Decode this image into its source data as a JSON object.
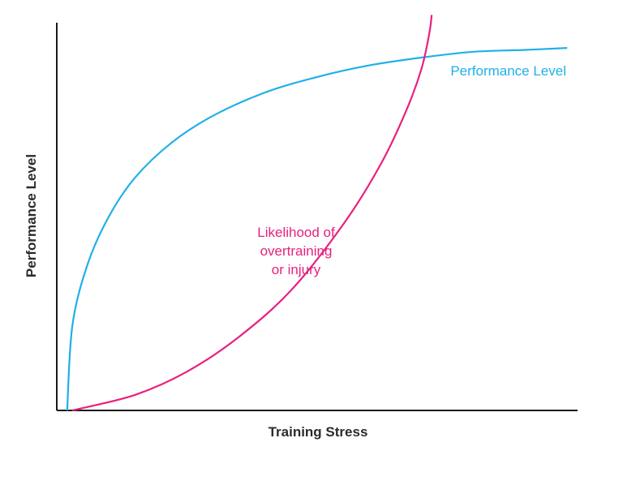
{
  "chart_data": {
    "type": "line",
    "title": "",
    "xlabel": "Training Stress",
    "ylabel": "Performance Level",
    "xlim": [
      0,
      1
    ],
    "ylim": [
      0,
      1
    ],
    "grid": false,
    "legend": "none",
    "series": [
      {
        "name": "Performance Level",
        "color": "#1fb0e8",
        "x": [
          0.02,
          0.03,
          0.06,
          0.1,
          0.15,
          0.22,
          0.3,
          0.4,
          0.5,
          0.6,
          0.7,
          0.8,
          0.9,
          0.98
        ],
        "y": [
          0.0,
          0.22,
          0.38,
          0.5,
          0.6,
          0.69,
          0.76,
          0.82,
          0.86,
          0.89,
          0.91,
          0.925,
          0.93,
          0.935
        ]
      },
      {
        "name": "Likelihood of overtraining or injury",
        "color": "#e8207f",
        "x": [
          0.03,
          0.15,
          0.25,
          0.35,
          0.45,
          0.55,
          0.62,
          0.67,
          0.7,
          0.715,
          0.72
        ],
        "y": [
          0.0,
          0.04,
          0.1,
          0.19,
          0.31,
          0.48,
          0.63,
          0.77,
          0.88,
          0.97,
          1.02
        ]
      }
    ],
    "annotations": [
      {
        "text": "Performance Level",
        "color": "#1fb0e8"
      },
      {
        "lines": [
          "Likelihood of",
          "overtraining",
          "or injury"
        ],
        "color": "#e8207f"
      }
    ]
  }
}
